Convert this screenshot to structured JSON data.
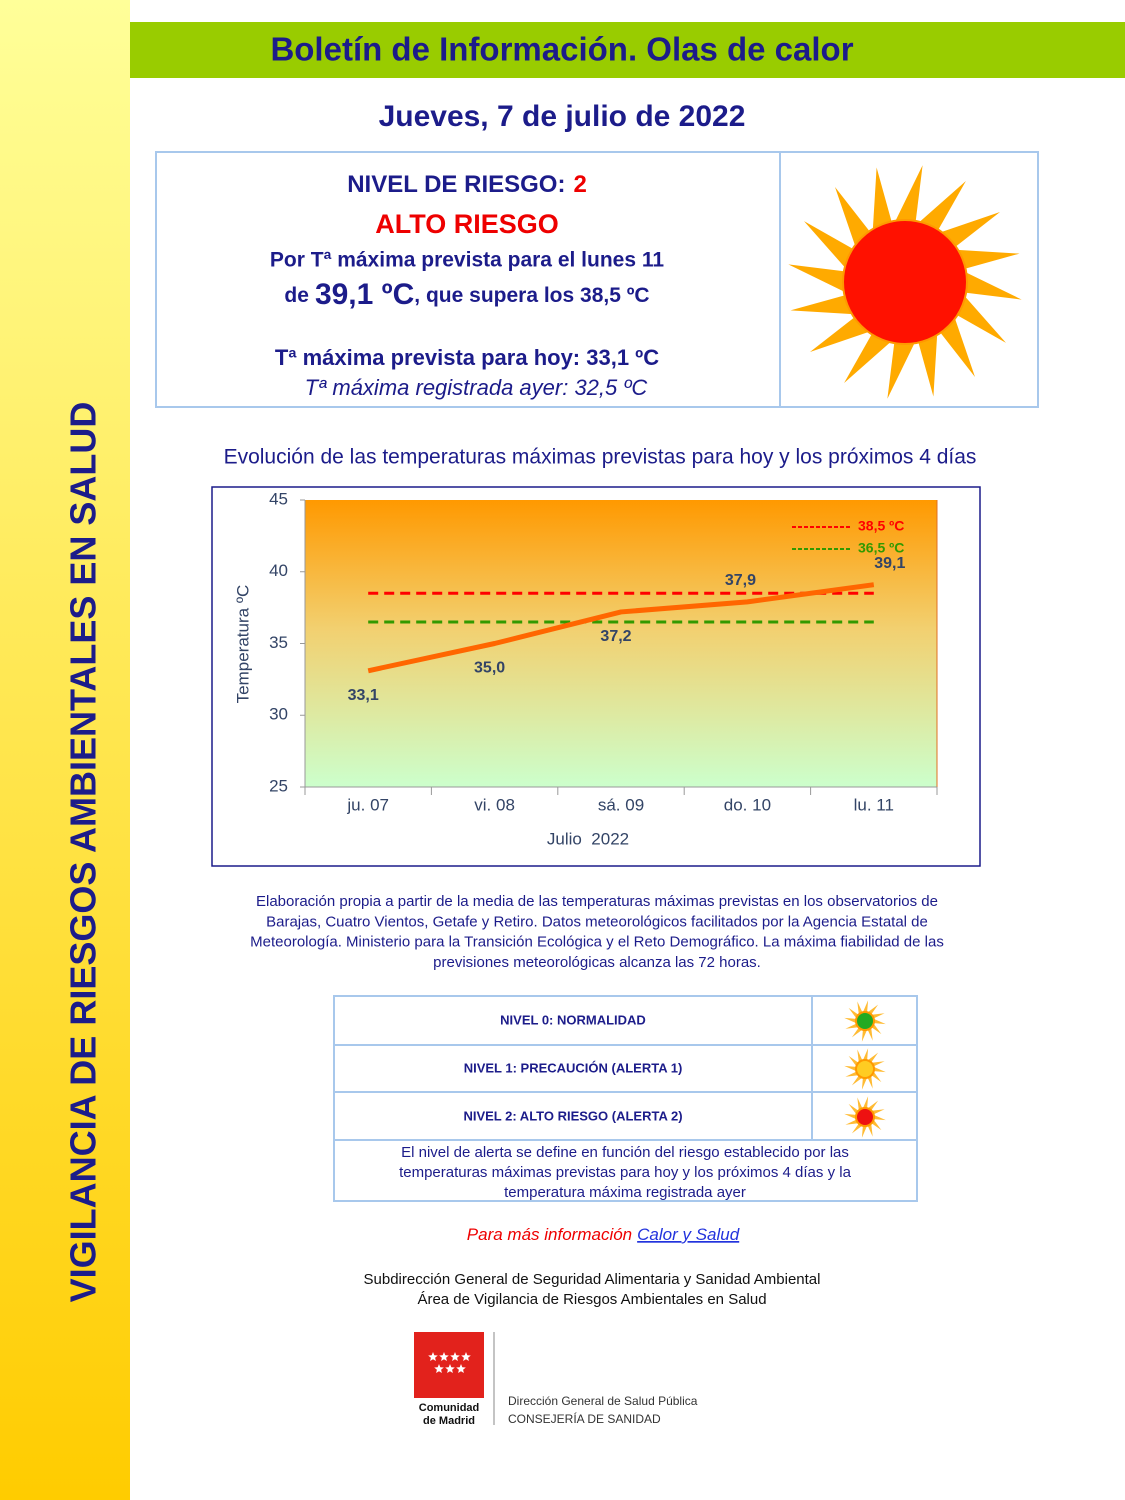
{
  "sidebar": {
    "title": "VIGILANCIA DE RIESGOS AMBIENTALES EN SALUD"
  },
  "header": {
    "title": "Boletín de Información. Olas de calor",
    "date": "Jueves, 7 de julio de 2022"
  },
  "risk": {
    "level_label": "NIVEL DE RIESGO:",
    "level": "2",
    "level_name": "ALTO RIESGO",
    "reason_line1": "Por Tª máxima prevista para el lunes 11",
    "reason_prefix": "de",
    "reason_value": "39,1 ºC",
    "reason_suffix": ", que supera los 38,5 ºC",
    "today": "Tª máxima prevista para hoy: 33,1 ºC",
    "yesterday": "Tª máxima registrada ayer: 32,5 ºC"
  },
  "chart_data": {
    "type": "line",
    "title": "Evolución de las temperaturas máximas previstas para hoy y los próximos 4 días",
    "categories": [
      "ju. 07",
      "vi. 08",
      "sá. 09",
      "do. 10",
      "lu. 11"
    ],
    "values": [
      33.1,
      35.0,
      37.2,
      37.9,
      39.1
    ],
    "value_labels": [
      "33,1",
      "35,0",
      "37,2",
      "37,9",
      "39,1"
    ],
    "color": "#ff6600",
    "ylabel": "Temperatura ºC",
    "xlabel": "Julio  2022",
    "ylim": [
      25,
      45
    ],
    "yticks": [
      25,
      30,
      35,
      40,
      45
    ],
    "thresholds": [
      {
        "value": 38.5,
        "label": "38,5 ºC",
        "color": "#ff0000"
      },
      {
        "value": 36.5,
        "label": "36,5 ºC",
        "color": "#339900"
      }
    ]
  },
  "source_note": [
    "Elaboración propia a partir de la media de las temperaturas máximas previstas en los observatorios de",
    "Barajas, Cuatro Vientos, Getafe y Retiro. Datos meteorológicos facilitados por la Agencia Estatal de",
    "Meteorología. Ministerio para la Transición Ecológica y el Reto Demográfico. La máxima fiabilidad de las",
    "previsiones meteorológicas alcanza las 72 horas."
  ],
  "levels": {
    "rows": [
      "NIVEL 0: NORMALIDAD",
      "NIVEL 1: PRECAUCIÓN (ALERTA 1)",
      "NIVEL 2: ALTO RIESGO (ALERTA 2)"
    ],
    "note": [
      "El nivel de alerta se define en función del riesgo establecido por las",
      "temperaturas máximas previstas para hoy y los próximos 4 días y la",
      "temperatura máxima registrada ayer"
    ]
  },
  "more_info": {
    "text": "Para más información",
    "link": "Calor y Salud"
  },
  "footer": {
    "lines": [
      "Subdirección General de Seguridad Alimentaria y Sanidad Ambiental",
      "Área de Vigilancia de Riesgos Ambientales en Salud"
    ],
    "logo": {
      "name_line1": "Comunidad",
      "name_line2": "de Madrid",
      "dept": "Dirección General de Salud Pública",
      "council": "CONSEJERÍA DE SANIDAD"
    }
  }
}
